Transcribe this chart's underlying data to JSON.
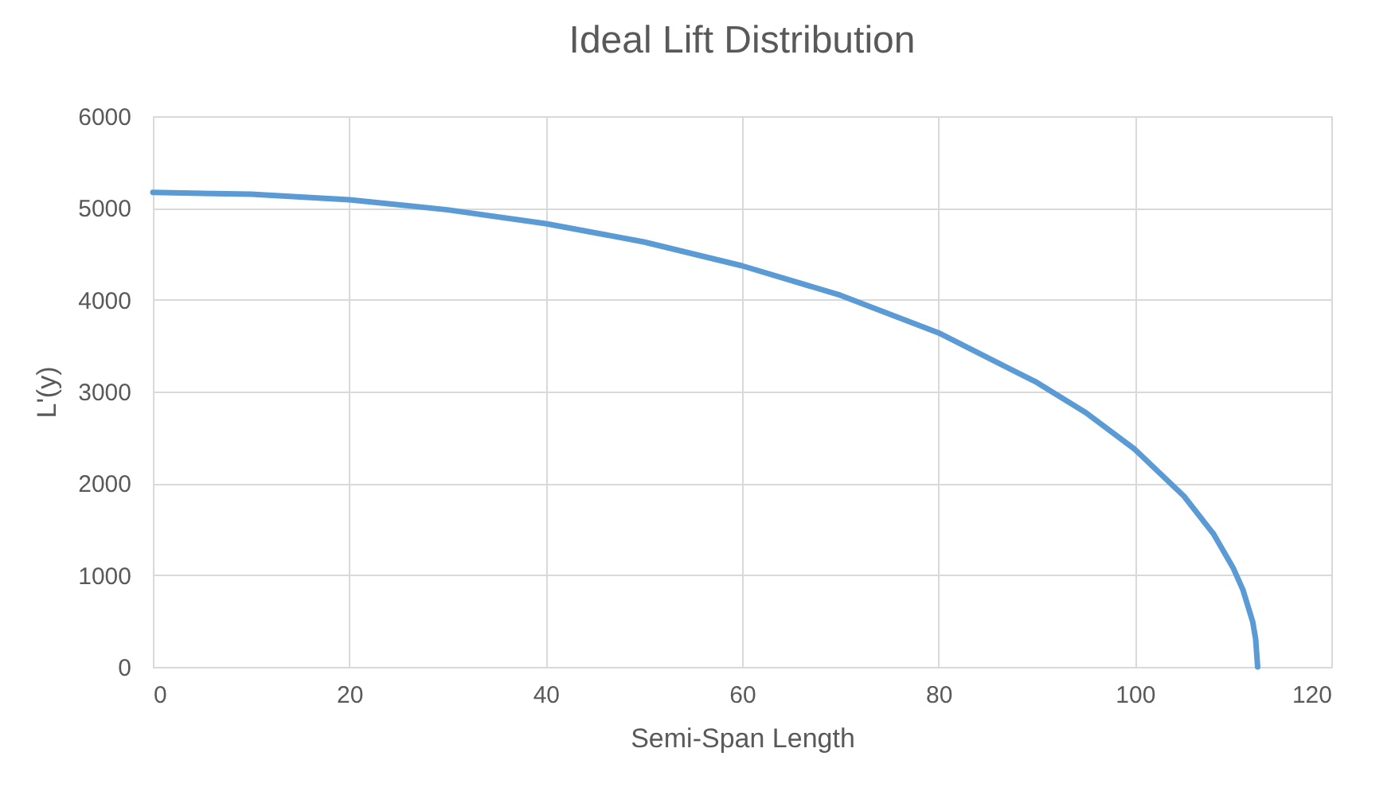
{
  "chart_data": {
    "type": "line",
    "title": "Ideal Lift Distribution",
    "xlabel": "Semi-Span Length",
    "ylabel": "L'(y)",
    "x": [
      0,
      10,
      20,
      30,
      40,
      50,
      60,
      70,
      80,
      90,
      95,
      100,
      105,
      108,
      110,
      111,
      112,
      112.3,
      112.5
    ],
    "series": [
      {
        "color": "#5b9bd5",
        "values": [
          5170,
          5150,
          5090,
          4980,
          4830,
          4630,
          4370,
          4050,
          3640,
          3100,
          2770,
          2370,
          1860,
          1450,
          1080,
          840,
          490,
          300,
          0
        ]
      }
    ],
    "xlim": [
      0,
      120
    ],
    "xticks": [
      0,
      20,
      40,
      60,
      80,
      100,
      120
    ],
    "ylim": [
      0,
      6000
    ],
    "yticks": [
      0,
      1000,
      2000,
      3000,
      4000,
      5000,
      6000
    ],
    "grid": true,
    "marker": "none",
    "line_style": "solid"
  }
}
